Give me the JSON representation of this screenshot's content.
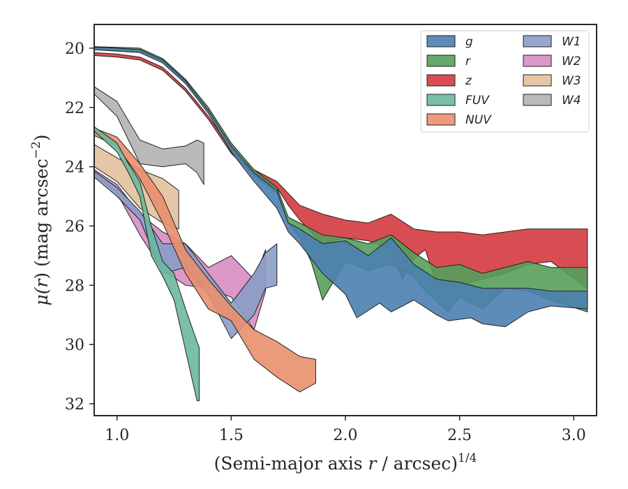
{
  "chart_data": {
    "type": "area",
    "title": "",
    "xlabel": "(Semi-major axis r / arcsec)^1/4",
    "xlabel_parts": {
      "pre": "(Semi-major axis ",
      "var": "r",
      "post": " / arcsec)",
      "sup": "1/4"
    },
    "ylabel": "μ(r) (mag arcsec^-2)",
    "ylabel_parts": {
      "mu": "μ(",
      "var": "r",
      "mid": ") (mag arcsec",
      "sup": "−2",
      "close": ")"
    },
    "xlim": [
      0.9,
      3.1
    ],
    "ylim": [
      32.4,
      19.2
    ],
    "y_inverted": true,
    "xticks": [
      1.0,
      1.5,
      2.0,
      2.5,
      3.0
    ],
    "xtick_labels": [
      "1.0",
      "1.5",
      "2.0",
      "2.5",
      "3.0"
    ],
    "yticks": [
      20,
      22,
      24,
      26,
      28,
      30,
      32
    ],
    "ytick_labels": [
      "20",
      "22",
      "24",
      "26",
      "28",
      "30",
      "32"
    ],
    "grid": false,
    "legend_position": "top-right",
    "legend_columns": 2,
    "series": [
      {
        "name": "g",
        "color": "#4c7fb0",
        "upper": [
          [
            0.9,
            19.97
          ],
          [
            1.0,
            20.0
          ],
          [
            1.1,
            20.05
          ],
          [
            1.2,
            20.4
          ],
          [
            1.3,
            21.1
          ],
          [
            1.4,
            22.1
          ],
          [
            1.5,
            23.3
          ],
          [
            1.6,
            24.2
          ],
          [
            1.7,
            24.8
          ],
          [
            1.75,
            25.9
          ],
          [
            1.8,
            26.1
          ],
          [
            1.9,
            26.6
          ],
          [
            2.0,
            26.5
          ],
          [
            2.1,
            27.0
          ],
          [
            2.2,
            26.4
          ],
          [
            2.3,
            27.3
          ],
          [
            2.4,
            27.8
          ],
          [
            2.5,
            27.9
          ],
          [
            2.6,
            28.1
          ],
          [
            2.7,
            28.1
          ],
          [
            2.8,
            28.1
          ],
          [
            2.9,
            28.2
          ],
          [
            3.06,
            28.2
          ]
        ],
        "lower": [
          [
            0.9,
            20.05
          ],
          [
            1.0,
            20.1
          ],
          [
            1.1,
            20.15
          ],
          [
            1.2,
            20.5
          ],
          [
            1.3,
            21.2
          ],
          [
            1.4,
            22.2
          ],
          [
            1.5,
            23.5
          ],
          [
            1.6,
            24.5
          ],
          [
            1.7,
            25.4
          ],
          [
            1.75,
            26.2
          ],
          [
            1.8,
            26.6
          ],
          [
            1.9,
            27.6
          ],
          [
            2.0,
            28.3
          ],
          [
            2.05,
            29.1
          ],
          [
            2.15,
            28.6
          ],
          [
            2.2,
            28.9
          ],
          [
            2.3,
            28.5
          ],
          [
            2.4,
            29.0
          ],
          [
            2.45,
            29.2
          ],
          [
            2.55,
            29.1
          ],
          [
            2.6,
            29.3
          ],
          [
            2.7,
            29.4
          ],
          [
            2.8,
            28.9
          ],
          [
            2.9,
            28.7
          ],
          [
            3.06,
            28.8
          ]
        ]
      },
      {
        "name": "r",
        "color": "#55a05a",
        "upper": [
          [
            0.9,
            19.95
          ],
          [
            1.0,
            19.97
          ],
          [
            1.1,
            20.0
          ],
          [
            1.2,
            20.35
          ],
          [
            1.3,
            21.05
          ],
          [
            1.4,
            22.0
          ],
          [
            1.5,
            23.2
          ],
          [
            1.6,
            24.1
          ],
          [
            1.7,
            24.7
          ],
          [
            1.75,
            25.7
          ],
          [
            1.8,
            25.9
          ],
          [
            1.9,
            26.3
          ],
          [
            2.0,
            26.4
          ],
          [
            2.1,
            26.6
          ],
          [
            2.2,
            26.3
          ],
          [
            2.3,
            26.9
          ],
          [
            2.4,
            27.4
          ],
          [
            2.5,
            27.3
          ],
          [
            2.6,
            27.6
          ],
          [
            2.7,
            27.4
          ],
          [
            2.8,
            27.2
          ],
          [
            2.9,
            27.4
          ],
          [
            3.06,
            27.4
          ]
        ],
        "lower": [
          [
            0.9,
            20.05
          ],
          [
            1.0,
            20.08
          ],
          [
            1.1,
            20.12
          ],
          [
            1.2,
            20.45
          ],
          [
            1.3,
            21.15
          ],
          [
            1.4,
            22.1
          ],
          [
            1.5,
            23.35
          ],
          [
            1.6,
            24.3
          ],
          [
            1.7,
            24.9
          ],
          [
            1.75,
            25.9
          ],
          [
            1.8,
            26.4
          ],
          [
            1.85,
            27.2
          ],
          [
            1.9,
            28.5
          ],
          [
            2.0,
            27.2
          ],
          [
            2.1,
            27.5
          ],
          [
            2.2,
            27.3
          ],
          [
            2.3,
            27.7
          ],
          [
            2.35,
            28.2
          ],
          [
            2.45,
            28.9
          ],
          [
            2.5,
            28.4
          ],
          [
            2.6,
            28.8
          ],
          [
            2.7,
            28.1
          ],
          [
            2.8,
            28.2
          ],
          [
            2.9,
            28.5
          ],
          [
            3.06,
            28.9
          ]
        ]
      },
      {
        "name": "z",
        "color": "#d43a3e",
        "upper": [
          [
            0.9,
            20.15
          ],
          [
            1.0,
            20.2
          ],
          [
            1.1,
            20.3
          ],
          [
            1.2,
            20.65
          ],
          [
            1.3,
            21.35
          ],
          [
            1.4,
            22.3
          ],
          [
            1.5,
            23.4
          ],
          [
            1.6,
            24.1
          ],
          [
            1.7,
            24.5
          ],
          [
            1.75,
            24.9
          ],
          [
            1.8,
            25.3
          ],
          [
            1.9,
            25.6
          ],
          [
            2.0,
            25.8
          ],
          [
            2.1,
            25.9
          ],
          [
            2.2,
            25.6
          ],
          [
            2.3,
            26.1
          ],
          [
            2.4,
            26.2
          ],
          [
            2.5,
            26.2
          ],
          [
            2.6,
            26.3
          ],
          [
            2.7,
            26.2
          ],
          [
            2.8,
            26.1
          ],
          [
            2.9,
            26.1
          ],
          [
            3.06,
            26.1
          ]
        ],
        "lower": [
          [
            0.9,
            20.25
          ],
          [
            1.0,
            20.3
          ],
          [
            1.1,
            20.4
          ],
          [
            1.2,
            20.75
          ],
          [
            1.3,
            21.45
          ],
          [
            1.4,
            22.4
          ],
          [
            1.5,
            23.55
          ],
          [
            1.6,
            24.3
          ],
          [
            1.7,
            24.7
          ],
          [
            1.75,
            25.3
          ],
          [
            1.8,
            25.8
          ],
          [
            1.9,
            26.6
          ],
          [
            2.0,
            26.4
          ],
          [
            2.1,
            26.5
          ],
          [
            2.2,
            26.8
          ],
          [
            2.25,
            27.8
          ],
          [
            2.3,
            27.1
          ],
          [
            2.35,
            26.8
          ],
          [
            2.4,
            28.0
          ],
          [
            2.5,
            28.0
          ],
          [
            2.6,
            27.8
          ],
          [
            2.7,
            27.6
          ],
          [
            2.8,
            27.3
          ],
          [
            2.9,
            27.2
          ],
          [
            3.06,
            28.1
          ]
        ]
      },
      {
        "name": "FUV",
        "color": "#6cb89f",
        "upper": [
          [
            0.9,
            22.65
          ],
          [
            1.0,
            23.2
          ],
          [
            1.05,
            23.9
          ],
          [
            1.1,
            24.5
          ],
          [
            1.15,
            26.0
          ],
          [
            1.2,
            27.2
          ],
          [
            1.25,
            27.6
          ],
          [
            1.3,
            28.8
          ],
          [
            1.35,
            29.9
          ],
          [
            1.36,
            30.1
          ]
        ],
        "lower": [
          [
            0.9,
            22.8
          ],
          [
            1.0,
            23.5
          ],
          [
            1.05,
            24.2
          ],
          [
            1.1,
            25.0
          ],
          [
            1.15,
            27.0
          ],
          [
            1.2,
            27.7
          ],
          [
            1.25,
            28.5
          ],
          [
            1.3,
            30.2
          ],
          [
            1.35,
            31.9
          ],
          [
            1.36,
            31.9
          ]
        ]
      },
      {
        "name": "NUV",
        "color": "#e98f6e",
        "upper": [
          [
            0.9,
            22.7
          ],
          [
            1.0,
            23.0
          ],
          [
            1.1,
            23.9
          ],
          [
            1.2,
            25.0
          ],
          [
            1.3,
            26.8
          ],
          [
            1.4,
            27.8
          ],
          [
            1.5,
            28.7
          ],
          [
            1.6,
            29.5
          ],
          [
            1.7,
            29.9
          ],
          [
            1.8,
            30.4
          ],
          [
            1.87,
            30.5
          ]
        ],
        "lower": [
          [
            0.9,
            22.95
          ],
          [
            1.0,
            23.3
          ],
          [
            1.1,
            24.4
          ],
          [
            1.2,
            25.9
          ],
          [
            1.3,
            27.6
          ],
          [
            1.4,
            28.8
          ],
          [
            1.5,
            29.2
          ],
          [
            1.6,
            30.5
          ],
          [
            1.7,
            31.1
          ],
          [
            1.8,
            31.6
          ],
          [
            1.87,
            31.3
          ]
        ]
      },
      {
        "name": "W1",
        "color": "#8a9dc5",
        "upper": [
          [
            0.9,
            24.15
          ],
          [
            1.0,
            24.7
          ],
          [
            1.1,
            25.5
          ],
          [
            1.2,
            26.6
          ],
          [
            1.3,
            26.6
          ],
          [
            1.4,
            27.6
          ],
          [
            1.5,
            28.6
          ],
          [
            1.6,
            27.6
          ],
          [
            1.65,
            26.9
          ],
          [
            1.7,
            26.6
          ]
        ],
        "lower": [
          [
            0.9,
            24.35
          ],
          [
            1.0,
            25.0
          ],
          [
            1.1,
            25.8
          ],
          [
            1.2,
            27.6
          ],
          [
            1.3,
            27.4
          ],
          [
            1.4,
            28.3
          ],
          [
            1.5,
            29.8
          ],
          [
            1.6,
            29.0
          ],
          [
            1.65,
            28.1
          ],
          [
            1.7,
            28.0
          ]
        ]
      },
      {
        "name": "W2",
        "color": "#d78dc2",
        "upper": [
          [
            0.9,
            24.1
          ],
          [
            1.0,
            24.6
          ],
          [
            1.1,
            25.6
          ],
          [
            1.2,
            26.2
          ],
          [
            1.3,
            26.6
          ],
          [
            1.4,
            27.4
          ],
          [
            1.5,
            27.0
          ],
          [
            1.6,
            27.8
          ],
          [
            1.65,
            26.8
          ]
        ],
        "lower": [
          [
            0.9,
            24.25
          ],
          [
            1.0,
            24.9
          ],
          [
            1.1,
            26.3
          ],
          [
            1.2,
            27.5
          ],
          [
            1.3,
            28.0
          ],
          [
            1.4,
            28.1
          ],
          [
            1.5,
            28.4
          ],
          [
            1.6,
            29.5
          ],
          [
            1.65,
            28.2
          ]
        ]
      },
      {
        "name": "W3",
        "color": "#e2c19d",
        "upper": [
          [
            0.9,
            23.25
          ],
          [
            1.0,
            23.7
          ],
          [
            1.1,
            24.1
          ],
          [
            1.2,
            24.4
          ],
          [
            1.27,
            24.8
          ]
        ],
        "lower": [
          [
            0.9,
            24.0
          ],
          [
            1.0,
            24.5
          ],
          [
            1.1,
            25.4
          ],
          [
            1.2,
            25.9
          ],
          [
            1.27,
            26.1
          ]
        ]
      },
      {
        "name": "W4",
        "color": "#b3b3b3",
        "upper": [
          [
            0.9,
            21.3
          ],
          [
            1.0,
            21.8
          ],
          [
            1.1,
            23.1
          ],
          [
            1.2,
            23.4
          ],
          [
            1.3,
            23.3
          ],
          [
            1.35,
            23.1
          ],
          [
            1.38,
            23.2
          ]
        ],
        "lower": [
          [
            0.9,
            21.55
          ],
          [
            1.0,
            22.3
          ],
          [
            1.1,
            23.9
          ],
          [
            1.2,
            24.0
          ],
          [
            1.3,
            23.9
          ],
          [
            1.35,
            24.2
          ],
          [
            1.38,
            24.6
          ]
        ]
      }
    ]
  }
}
